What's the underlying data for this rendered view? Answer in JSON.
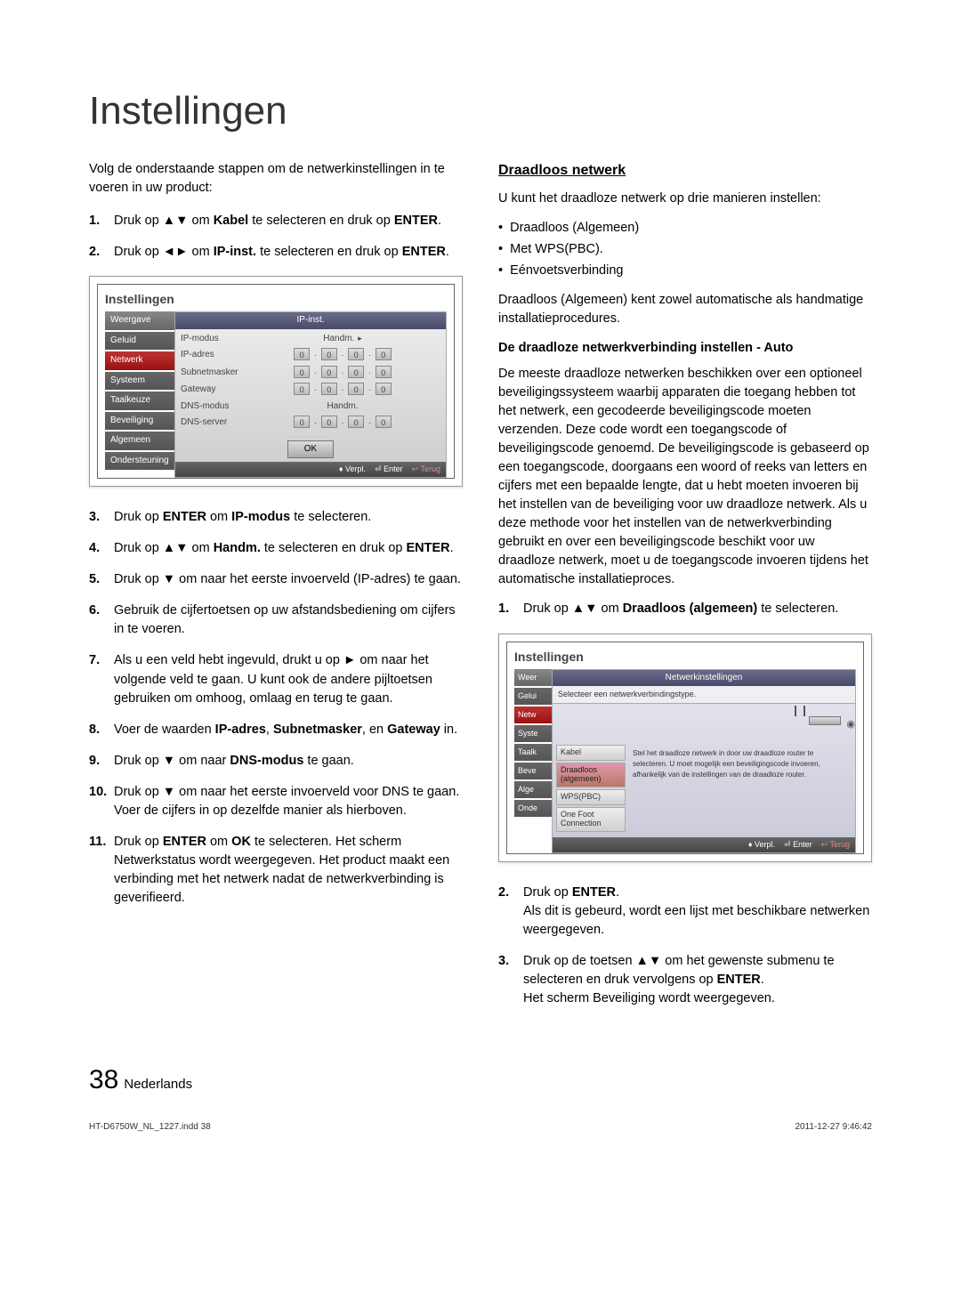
{
  "pageTitle": "Instellingen",
  "leftColumn": {
    "intro": "Volg de onderstaande stappen om de netwerkinstellingen in te voeren in uw product:",
    "steps1": [
      {
        "n": "1.",
        "html": "Druk op ▲▼ om <b>Kabel</b> te selecteren en druk op <b>ENTER</b>."
      },
      {
        "n": "2.",
        "html": "Druk op ◄► om <b>IP-inst.</b> te selecteren en druk op <b>ENTER</b>."
      }
    ],
    "steps2": [
      {
        "n": "3.",
        "html": "Druk op <b>ENTER</b> om <b>IP-modus</b> te selecteren."
      },
      {
        "n": "4.",
        "html": "Druk op ▲▼ om <b>Handm.</b> te selecteren en druk op <b>ENTER</b>."
      },
      {
        "n": "5.",
        "html": "Druk op ▼ om naar het eerste invoerveld (IP-adres) te gaan."
      },
      {
        "n": "6.",
        "html": "Gebruik de cijfertoetsen op uw afstandsbediening om cijfers in te voeren."
      },
      {
        "n": "7.",
        "html": "Als u een veld hebt ingevuld, drukt u op ► om naar het volgende veld te gaan. U kunt ook de andere pijltoetsen gebruiken om omhoog, omlaag en terug te gaan."
      },
      {
        "n": "8.",
        "html": "Voer de waarden <b>IP-adres</b>, <b>Subnetmasker</b>, en <b>Gateway</b> in."
      },
      {
        "n": "9.",
        "html": "Druk op ▼ om naar <b>DNS-modus</b> te gaan."
      },
      {
        "n": "10.",
        "html": "Druk op ▼ om naar het eerste invoerveld voor DNS te gaan. Voer de cijfers in op dezelfde manier als hierboven."
      },
      {
        "n": "11.",
        "html": "Druk op <b>ENTER</b> om <b>OK</b> te selecteren. Het scherm Netwerkstatus wordt weergegeven. Het product maakt een verbinding met het netwerk nadat de netwerkverbinding is geverifieerd."
      }
    ]
  },
  "screenshot1": {
    "title": "Instellingen",
    "header": "IP-inst.",
    "tabs": [
      "Weergave",
      "Geluid",
      "Netwerk",
      "Systeem",
      "Taalkeuze",
      "Beveiliging",
      "Algemeen",
      "Ondersteuning"
    ],
    "rows": [
      {
        "label": "IP-modus",
        "type": "text",
        "value": "Handm.",
        "chev": true
      },
      {
        "label": "IP-adres",
        "type": "ip"
      },
      {
        "label": "Subnetmasker",
        "type": "ip"
      },
      {
        "label": "Gateway",
        "type": "ip"
      },
      {
        "label": "DNS-modus",
        "type": "text",
        "value": "Handm."
      },
      {
        "label": "DNS-server",
        "type": "ip"
      }
    ],
    "ok": "OK",
    "footer": [
      "♦ Verpl.",
      "⏎ Enter",
      "↩ Terug"
    ]
  },
  "rightColumn": {
    "subtitle": "Draadloos netwerk",
    "intro": "U kunt het draadloze netwerk op drie manieren instellen:",
    "bullets": [
      "Draadloos (Algemeen)",
      "Met WPS(PBC).",
      "Eénvoetsverbinding"
    ],
    "body1": "Draadloos (Algemeen) kent zowel automatische als handmatige installatieprocedures.",
    "subsection": "De draadloze netwerkverbinding instellen - Auto",
    "body2": "De meeste draadloze netwerken beschikken over een optioneel beveiligingssysteem waarbij apparaten die toegang hebben tot het netwerk, een gecodeerde beveiligingscode moeten verzenden. Deze code wordt een toegangscode of beveiligingscode genoemd. De beveiligingscode is gebaseerd op een toegangscode, doorgaans een woord of reeks van letters en cijfers met een bepaalde lengte, dat u hebt moeten invoeren bij het instellen van de beveiliging voor uw draadloze netwerk. Als u deze methode voor het instellen van de netwerkverbinding gebruikt en over een beveiligingscode beschikt voor uw draadloze netwerk, moet u de toegangscode invoeren tijdens het automatische installatieproces.",
    "steps3": [
      {
        "n": "1.",
        "html": "Druk op ▲▼ om <b>Draadloos (algemeen)</b> te selecteren."
      }
    ],
    "steps4": [
      {
        "n": "2.",
        "html": "Druk op <b>ENTER</b>.<br>Als dit is gebeurd, wordt een lijst met beschikbare netwerken weergegeven."
      },
      {
        "n": "3.",
        "html": "Druk op de toetsen ▲▼ om het gewenste submenu te selecteren en druk vervolgens op <b>ENTER</b>.<br>Het scherm Beveiliging wordt weergegeven."
      }
    ]
  },
  "screenshot2": {
    "title": "Instellingen",
    "header": "Netwerkinstellingen",
    "sub": "Selecteer een netwerkverbindingstype.",
    "tabsShort": [
      "Weer",
      "Gelui",
      "Netw",
      "Syste",
      "Taalk",
      "Beve",
      "Alge",
      "Onde"
    ],
    "options": [
      "Kabel",
      "Draadloos (algemeen)",
      "WPS(PBC)",
      "One Foot Connection"
    ],
    "desc": "Stel het draadloze netwerk in door uw draadloze router te selecteren. U moet mogelijk een beveiligingscode invoeren, afhankelijk van de instellingen van de draadloze router.",
    "footer": [
      "♦ Verpl.",
      "⏎ Enter",
      "↩ Terug"
    ]
  },
  "pageNumber": {
    "num": "38",
    "lang": "Nederlands"
  },
  "footer": {
    "left": "HT-D6750W_NL_1227.indd   38",
    "right": "2011-12-27   9:46:42"
  }
}
